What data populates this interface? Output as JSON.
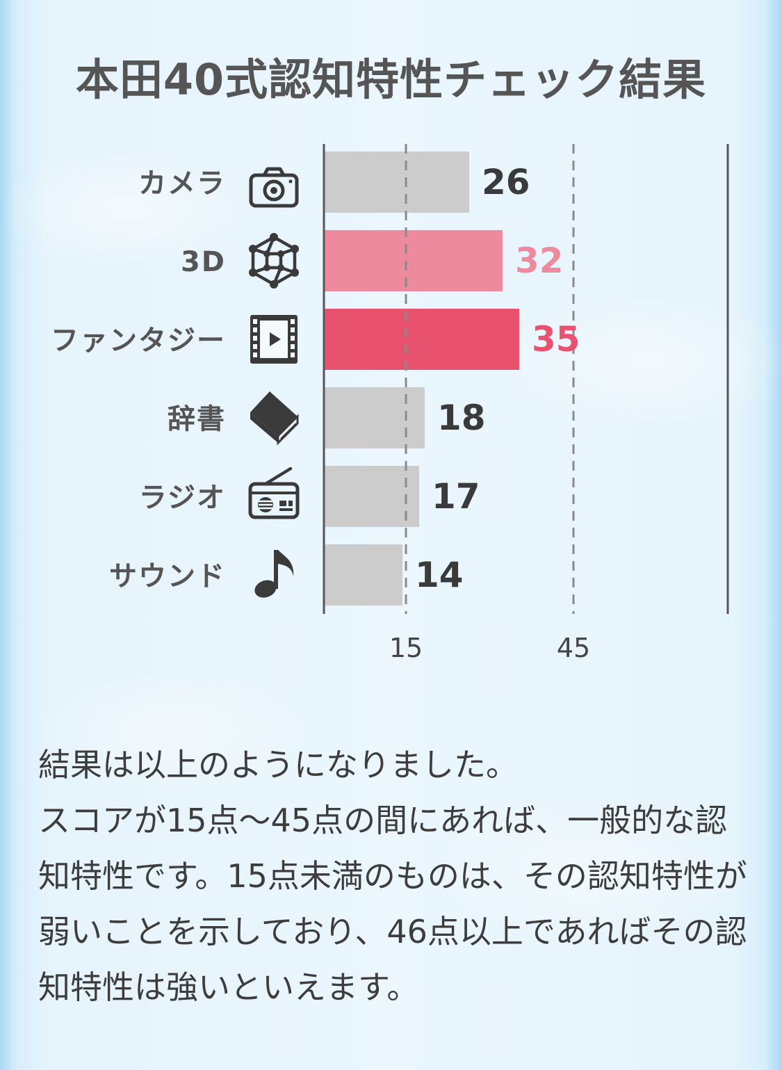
{
  "title": "本田40式認知特性チェック結果",
  "chart_data": {
    "type": "bar",
    "orientation": "horizontal",
    "categories": [
      "カメラ",
      "3D",
      "ファンタジー",
      "辞書",
      "ラジオ",
      "サウンド"
    ],
    "icons": [
      "camera-icon",
      "cube-3d-icon",
      "film-icon",
      "book-icon",
      "radio-icon",
      "music-note-icon"
    ],
    "values": [
      26,
      32,
      35,
      18,
      17,
      14
    ],
    "value_labels": [
      "26",
      "32",
      "35",
      "18",
      "17",
      "14"
    ],
    "bar_colors": [
      "#cccccc",
      "#ee8a9d",
      "#e9526e",
      "#cccccc",
      "#cccccc",
      "#cccccc"
    ],
    "label_colors": [
      "#3a3a3a",
      "#ee8a9d",
      "#e9526e",
      "#3a3a3a",
      "#3a3a3a",
      "#3a3a3a"
    ],
    "reference_lines": [
      15,
      45
    ],
    "xticks": [
      "15",
      "45"
    ],
    "xlim": [
      0,
      75
    ],
    "xlabel": "",
    "ylabel": "",
    "grid": false,
    "legend": "none"
  },
  "description": "結果は以上のようになりました。\nスコアが15点〜45点の間にあれば、一般的な認知特性です。15点未満のものは、その認知特性が弱いことを示しており、46点以上であればその認知特性は強いといえます。"
}
